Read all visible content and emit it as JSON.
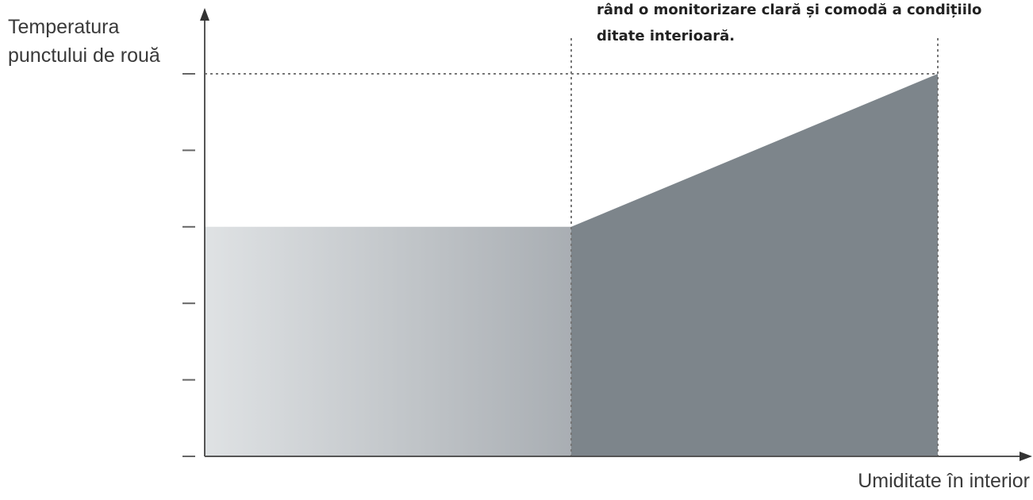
{
  "caption": {
    "line1": "rând o monitorizare clară și comodă a condițiilo",
    "line2": "ditate interioară."
  },
  "chart_data": {
    "type": "area",
    "ylabel_lines": [
      "Temperatura",
      "punctului de rouă"
    ],
    "xlabel": "Umiditate în interior",
    "xlim": [
      0,
      2
    ],
    "ylim": [
      0,
      6
    ],
    "y_ticks": [
      0,
      1,
      2,
      3,
      4,
      5,
      6
    ],
    "segments": [
      {
        "x": [
          0,
          1
        ],
        "y": [
          3,
          3
        ],
        "fill_from": "#dfe2e4",
        "fill_to": "#a9aeb3"
      },
      {
        "x": [
          1,
          2
        ],
        "y": [
          3,
          5
        ],
        "fill_from": "#7d858b",
        "fill_to": "#7d858b"
      }
    ],
    "reference_lines": {
      "vertical_x": [
        1,
        2
      ],
      "horizontal_y": [
        5
      ]
    },
    "colors": {
      "axis": "#555555",
      "dotted": "#777777",
      "tick": "#666666"
    }
  }
}
